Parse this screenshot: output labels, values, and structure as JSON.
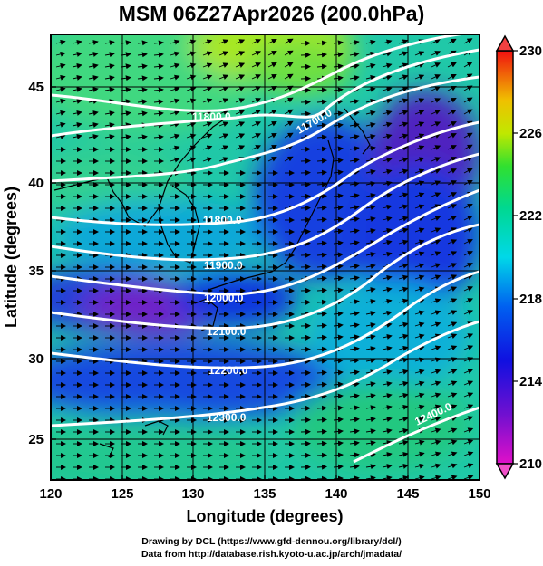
{
  "title": "MSM 06Z27Apr2026 (200.0hPa)",
  "x_axis": {
    "label": "Longitude (degrees)",
    "ticks": [
      "120",
      "125",
      "130",
      "135",
      "140",
      "145",
      "150"
    ]
  },
  "y_axis": {
    "label": "Latitude  (degrees)",
    "ticks": [
      "25",
      "30",
      "35",
      "40",
      "45"
    ]
  },
  "colorbar": {
    "ticks": [
      "230",
      "226",
      "222",
      "218",
      "214",
      "210"
    ],
    "min": 210,
    "max": 230
  },
  "contour_labels": [
    {
      "text": "11600.0"
    },
    {
      "text": "11700.0"
    },
    {
      "text": "11800.0"
    },
    {
      "text": "11900.0"
    },
    {
      "text": "12000.0"
    },
    {
      "text": "12100.0"
    },
    {
      "text": "12200.0"
    },
    {
      "text": "12300.0"
    },
    {
      "text": "12400.0"
    }
  ],
  "credits": {
    "line1": "Drawing by DCL (https://www.gfd-dennou.org/library/dcl/)",
    "line2": "Data from http://database.rish.kyoto-u.ac.jp/arch/jmadata/"
  }
}
